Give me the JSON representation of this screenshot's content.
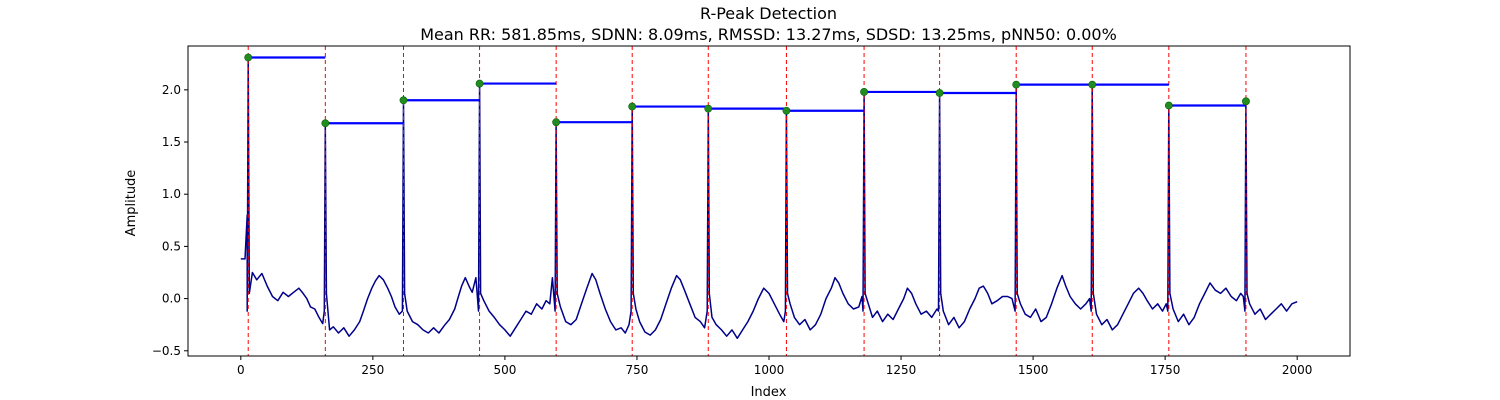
{
  "chart_data": {
    "type": "line",
    "title": "R-Peak Detection",
    "subtitle": "Mean RR: 581.85ms, SDNN: 8.09ms, RMSSD: 13.27ms, SDSD: 13.25ms, pNN50: 0.00%",
    "xlabel": "Index",
    "ylabel": "Amplitude",
    "xlim": [
      -100,
      2100
    ],
    "ylim": [
      -0.55,
      2.42
    ],
    "xticks": [
      0,
      250,
      500,
      750,
      1000,
      1250,
      1500,
      1750,
      2000
    ],
    "yticks": [
      -0.5,
      0.0,
      0.5,
      1.0,
      1.5,
      2.0
    ],
    "grid": false,
    "colors": {
      "signal": "#00008b",
      "peak_marker": "#228b22",
      "peak_line": "#ff0000",
      "rr_bar": "#0000ff"
    },
    "peaks": {
      "x": [
        14,
        160,
        308,
        452,
        597,
        741,
        885,
        1033,
        1180,
        1323,
        1468,
        1612,
        1757,
        1903
      ],
      "y": [
        2.31,
        1.68,
        1.9,
        2.06,
        1.69,
        1.84,
        1.82,
        1.8,
        1.98,
        1.97,
        2.05,
        2.05,
        1.85,
        1.89
      ]
    },
    "baseline": [
      [
        0,
        0.38
      ],
      [
        8,
        0.38
      ],
      [
        12,
        0.8
      ],
      [
        22,
        0.25
      ],
      [
        30,
        0.18
      ],
      [
        40,
        0.24
      ],
      [
        50,
        0.12
      ],
      [
        60,
        0.02
      ],
      [
        70,
        -0.02
      ],
      [
        80,
        0.06
      ],
      [
        90,
        0.02
      ],
      [
        100,
        0.06
      ],
      [
        110,
        0.1
      ],
      [
        118,
        0.05
      ],
      [
        125,
        0.0
      ],
      [
        132,
        -0.08
      ],
      [
        140,
        -0.1
      ],
      [
        148,
        -0.18
      ],
      [
        155,
        -0.24
      ],
      [
        168,
        -0.3
      ],
      [
        175,
        -0.27
      ],
      [
        185,
        -0.33
      ],
      [
        195,
        -0.28
      ],
      [
        205,
        -0.36
      ],
      [
        215,
        -0.3
      ],
      [
        225,
        -0.22
      ],
      [
        232,
        -0.12
      ],
      [
        240,
        0.0
      ],
      [
        248,
        0.1
      ],
      [
        255,
        0.17
      ],
      [
        262,
        0.22
      ],
      [
        270,
        0.18
      ],
      [
        278,
        0.1
      ],
      [
        285,
        0.02
      ],
      [
        292,
        -0.08
      ],
      [
        300,
        -0.15
      ],
      [
        315,
        -0.12
      ],
      [
        325,
        -0.22
      ],
      [
        335,
        -0.25
      ],
      [
        345,
        -0.3
      ],
      [
        355,
        -0.33
      ],
      [
        365,
        -0.28
      ],
      [
        375,
        -0.33
      ],
      [
        385,
        -0.26
      ],
      [
        395,
        -0.2
      ],
      [
        405,
        -0.1
      ],
      [
        412,
        0.02
      ],
      [
        418,
        0.12
      ],
      [
        425,
        0.2
      ],
      [
        432,
        0.12
      ],
      [
        438,
        0.06
      ],
      [
        445,
        0.2
      ],
      [
        460,
        -0.02
      ],
      [
        470,
        -0.12
      ],
      [
        480,
        -0.18
      ],
      [
        490,
        -0.25
      ],
      [
        500,
        -0.3
      ],
      [
        510,
        -0.36
      ],
      [
        520,
        -0.28
      ],
      [
        530,
        -0.2
      ],
      [
        540,
        -0.12
      ],
      [
        550,
        -0.15
      ],
      [
        560,
        -0.05
      ],
      [
        570,
        -0.1
      ],
      [
        578,
        -0.02
      ],
      [
        585,
        -0.05
      ],
      [
        590,
        0.2
      ],
      [
        605,
        -0.08
      ],
      [
        615,
        -0.22
      ],
      [
        625,
        -0.25
      ],
      [
        635,
        -0.2
      ],
      [
        645,
        -0.05
      ],
      [
        655,
        0.1
      ],
      [
        665,
        0.24
      ],
      [
        672,
        0.18
      ],
      [
        680,
        0.05
      ],
      [
        690,
        -0.1
      ],
      [
        700,
        -0.22
      ],
      [
        710,
        -0.3
      ],
      [
        720,
        -0.28
      ],
      [
        728,
        -0.33
      ],
      [
        735,
        -0.25
      ],
      [
        748,
        -0.1
      ],
      [
        755,
        -0.22
      ],
      [
        765,
        -0.32
      ],
      [
        775,
        -0.35
      ],
      [
        785,
        -0.3
      ],
      [
        795,
        -0.2
      ],
      [
        805,
        -0.05
      ],
      [
        815,
        0.1
      ],
      [
        825,
        0.22
      ],
      [
        832,
        0.18
      ],
      [
        840,
        0.08
      ],
      [
        850,
        -0.05
      ],
      [
        860,
        -0.18
      ],
      [
        870,
        -0.22
      ],
      [
        878,
        -0.28
      ],
      [
        892,
        -0.18
      ],
      [
        900,
        -0.25
      ],
      [
        910,
        -0.3
      ],
      [
        920,
        -0.36
      ],
      [
        930,
        -0.3
      ],
      [
        940,
        -0.38
      ],
      [
        950,
        -0.3
      ],
      [
        960,
        -0.22
      ],
      [
        970,
        -0.12
      ],
      [
        980,
        0.0
      ],
      [
        990,
        0.1
      ],
      [
        1000,
        0.05
      ],
      [
        1010,
        -0.05
      ],
      [
        1020,
        -0.15
      ],
      [
        1028,
        -0.22
      ],
      [
        1040,
        -0.05
      ],
      [
        1048,
        -0.18
      ],
      [
        1058,
        -0.25
      ],
      [
        1068,
        -0.2
      ],
      [
        1078,
        -0.3
      ],
      [
        1088,
        -0.25
      ],
      [
        1098,
        -0.15
      ],
      [
        1108,
        0.0
      ],
      [
        1118,
        0.1
      ],
      [
        1125,
        0.2
      ],
      [
        1132,
        0.15
      ],
      [
        1140,
        0.05
      ],
      [
        1150,
        -0.05
      ],
      [
        1160,
        -0.1
      ],
      [
        1170,
        -0.08
      ],
      [
        1176,
        0.02
      ],
      [
        1188,
        -0.05
      ],
      [
        1196,
        -0.18
      ],
      [
        1205,
        -0.12
      ],
      [
        1215,
        -0.22
      ],
      [
        1225,
        -0.15
      ],
      [
        1235,
        -0.2
      ],
      [
        1245,
        -0.1
      ],
      [
        1255,
        0.0
      ],
      [
        1262,
        0.1
      ],
      [
        1270,
        0.05
      ],
      [
        1278,
        -0.05
      ],
      [
        1288,
        -0.15
      ],
      [
        1298,
        -0.12
      ],
      [
        1308,
        -0.18
      ],
      [
        1318,
        -0.1
      ],
      [
        1330,
        -0.12
      ],
      [
        1340,
        -0.25
      ],
      [
        1350,
        -0.18
      ],
      [
        1360,
        -0.28
      ],
      [
        1370,
        -0.22
      ],
      [
        1380,
        -0.1
      ],
      [
        1390,
        0.0
      ],
      [
        1398,
        0.1
      ],
      [
        1406,
        0.12
      ],
      [
        1414,
        0.05
      ],
      [
        1422,
        -0.05
      ],
      [
        1432,
        -0.02
      ],
      [
        1442,
        0.02
      ],
      [
        1452,
        0.02
      ],
      [
        1460,
        0.0
      ],
      [
        1476,
        -0.05
      ],
      [
        1485,
        -0.15
      ],
      [
        1495,
        -0.18
      ],
      [
        1505,
        -0.1
      ],
      [
        1515,
        -0.22
      ],
      [
        1525,
        -0.18
      ],
      [
        1535,
        -0.05
      ],
      [
        1545,
        0.1
      ],
      [
        1555,
        0.22
      ],
      [
        1562,
        0.12
      ],
      [
        1570,
        0.02
      ],
      [
        1580,
        -0.05
      ],
      [
        1590,
        -0.1
      ],
      [
        1600,
        -0.05
      ],
      [
        1607,
        0.0
      ],
      [
        1620,
        -0.15
      ],
      [
        1630,
        -0.25
      ],
      [
        1640,
        -0.2
      ],
      [
        1650,
        -0.3
      ],
      [
        1660,
        -0.25
      ],
      [
        1670,
        -0.15
      ],
      [
        1680,
        -0.05
      ],
      [
        1690,
        0.05
      ],
      [
        1700,
        0.1
      ],
      [
        1708,
        0.05
      ],
      [
        1716,
        -0.02
      ],
      [
        1726,
        -0.1
      ],
      [
        1736,
        -0.05
      ],
      [
        1745,
        -0.12
      ],
      [
        1752,
        -0.05
      ],
      [
        1765,
        -0.1
      ],
      [
        1775,
        -0.22
      ],
      [
        1785,
        -0.15
      ],
      [
        1795,
        -0.25
      ],
      [
        1805,
        -0.18
      ],
      [
        1815,
        -0.05
      ],
      [
        1825,
        0.05
      ],
      [
        1835,
        0.15
      ],
      [
        1845,
        0.08
      ],
      [
        1855,
        0.05
      ],
      [
        1865,
        0.1
      ],
      [
        1875,
        0.02
      ],
      [
        1885,
        -0.02
      ],
      [
        1893,
        0.05
      ],
      [
        1898,
        0.02
      ],
      [
        1910,
        -0.05
      ],
      [
        1920,
        -0.15
      ],
      [
        1930,
        -0.1
      ],
      [
        1940,
        -0.2
      ],
      [
        1950,
        -0.15
      ],
      [
        1960,
        -0.1
      ],
      [
        1970,
        -0.05
      ],
      [
        1980,
        -0.12
      ],
      [
        1990,
        -0.05
      ],
      [
        2000,
        -0.03
      ]
    ]
  }
}
